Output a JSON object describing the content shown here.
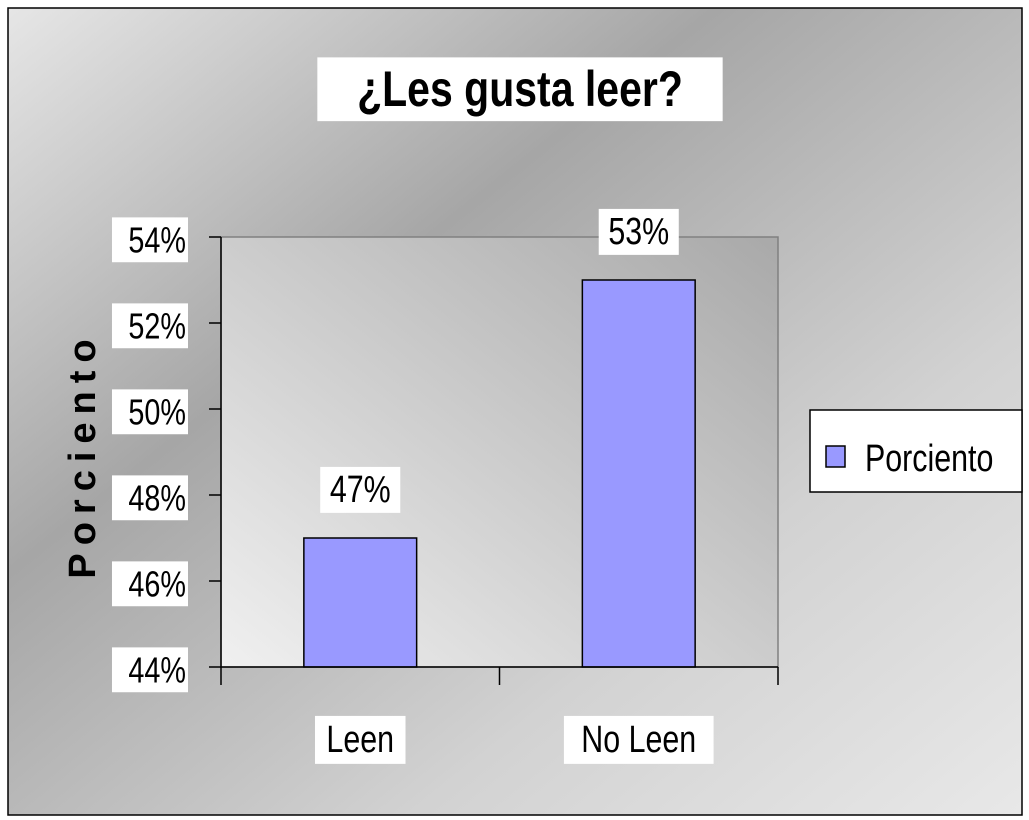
{
  "chart_data": {
    "type": "bar",
    "title": "¿Les gusta leer?",
    "y_label": "Porciento",
    "categories": [
      "Leen",
      "No Leen"
    ],
    "series": [
      {
        "name": "Porciento",
        "color": "#9999ff",
        "values": [
          47,
          53
        ],
        "value_labels": [
          "47%",
          "53%"
        ]
      }
    ],
    "ylim": [
      44,
      54
    ],
    "yticks": [
      {
        "value": 44,
        "label": "44%"
      },
      {
        "value": 46,
        "label": "46%"
      },
      {
        "value": 48,
        "label": "48%"
      },
      {
        "value": 50,
        "label": "50%"
      },
      {
        "value": 52,
        "label": "52%"
      },
      {
        "value": 54,
        "label": "54%"
      }
    ],
    "grid": false,
    "legend": "right"
  }
}
